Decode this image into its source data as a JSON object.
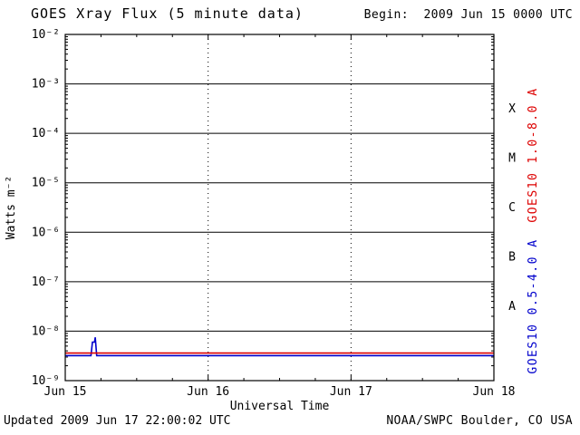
{
  "begin_label": "Begin:  2009 Jun 15 0000 UTC",
  "footer": {
    "updated": "Updated 2009 Jun 17 22:00:02 UTC",
    "source": "NOAA/SWPC Boulder, CO USA"
  },
  "chart_data": {
    "type": "line",
    "title": "GOES Xray Flux (5 minute data)",
    "xlabel": "Universal Time",
    "ylabel": "Watts m⁻²",
    "xlim_days": [
      0,
      3
    ],
    "ylim": [
      1e-09,
      0.01
    ],
    "grid": {
      "horizontal": "solid-per-decade",
      "vertical": "dotted-per-day"
    },
    "x_ticks": [
      {
        "day": 0,
        "label": "Jun 15"
      },
      {
        "day": 1,
        "label": "Jun 16"
      },
      {
        "day": 2,
        "label": "Jun 17"
      },
      {
        "day": 3,
        "label": "Jun 18"
      }
    ],
    "y_ticks": [
      {
        "exp": -2,
        "label": "10⁻²"
      },
      {
        "exp": -3,
        "label": "10⁻³"
      },
      {
        "exp": -4,
        "label": "10⁻⁴"
      },
      {
        "exp": -5,
        "label": "10⁻⁵"
      },
      {
        "exp": -6,
        "label": "10⁻⁶"
      },
      {
        "exp": -7,
        "label": "10⁻⁷"
      },
      {
        "exp": -8,
        "label": "10⁻⁸"
      },
      {
        "exp": -9,
        "label": "10⁻⁹"
      }
    ],
    "class_bands": [
      {
        "label": "X",
        "between_exp": [
          -4,
          -3
        ]
      },
      {
        "label": "M",
        "between_exp": [
          -5,
          -4
        ]
      },
      {
        "label": "C",
        "between_exp": [
          -6,
          -5
        ]
      },
      {
        "label": "B",
        "between_exp": [
          -7,
          -6
        ]
      },
      {
        "label": "A",
        "between_exp": [
          -8,
          -7
        ]
      }
    ],
    "series": [
      {
        "name": "GOES10 0.5-4.0 A",
        "color": "#0000cc",
        "points": [
          [
            0,
            3.2e-09
          ],
          [
            0.18,
            3.2e-09
          ],
          [
            0.19,
            6e-09
          ],
          [
            0.205,
            6e-09
          ],
          [
            0.21,
            7.5e-09
          ],
          [
            0.22,
            3.2e-09
          ],
          [
            3,
            3.2e-09
          ]
        ]
      },
      {
        "name": "GOES10 1.0-8.0 A",
        "color": "#dd0000",
        "points": [
          [
            0,
            3.6e-09
          ],
          [
            3,
            3.6e-09
          ]
        ]
      }
    ]
  }
}
